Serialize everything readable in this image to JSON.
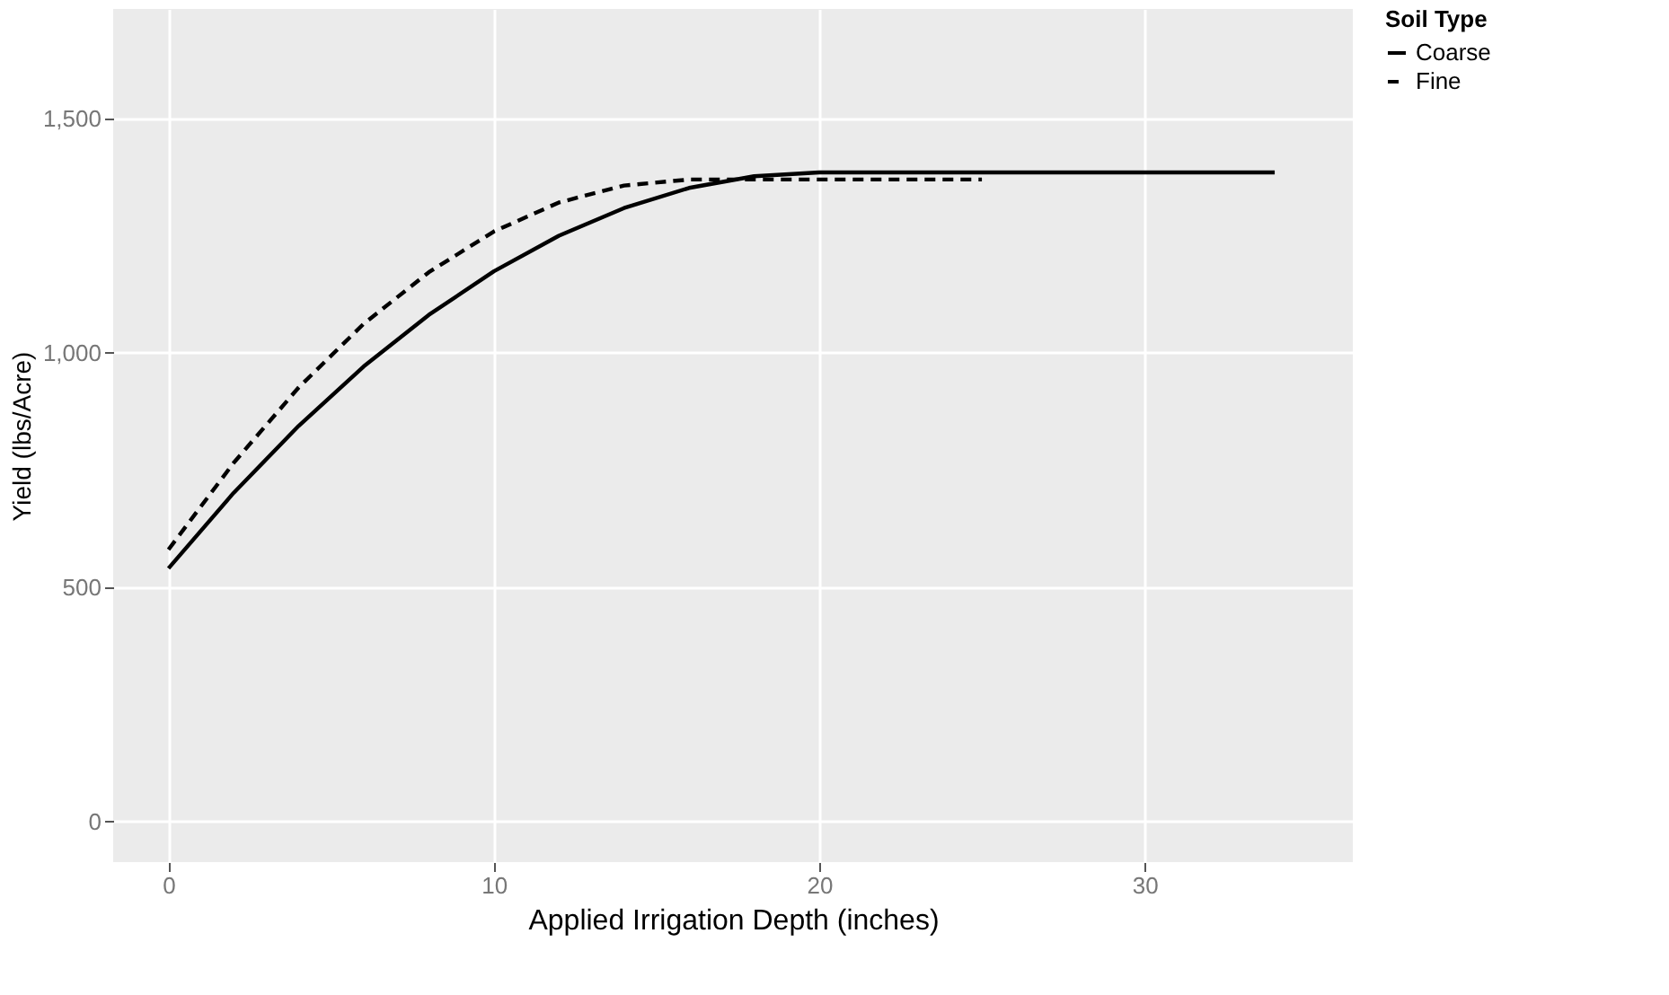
{
  "chart_data": {
    "type": "line",
    "xlabel": "Applied Irrigation Depth (inches)",
    "ylabel": "Yield (lbs/Acre)",
    "legend_title": "Soil Type",
    "legend": "right",
    "grid": true,
    "marker": "none",
    "xlim": [
      -1.7,
      36.4
    ],
    "ylim": [
      -87,
      1734
    ],
    "xticks": [
      0,
      10,
      20,
      30
    ],
    "yticks": [
      0,
      500,
      {
        "value": 1000,
        "label": "1,000"
      },
      {
        "value": 1500,
        "label": "1,500"
      }
    ],
    "series": [
      {
        "name": "Coarse",
        "color": "#000000",
        "line_style": "solid",
        "x": [
          0,
          2,
          4,
          6,
          8,
          10,
          12,
          14,
          16,
          18,
          20,
          34
        ],
        "values": [
          540,
          701,
          844,
          971,
          1081,
          1174,
          1250,
          1309,
          1352,
          1377,
          1385,
          1385
        ]
      },
      {
        "name": "Fine",
        "color": "#000000",
        "line_style": "dashed",
        "x": [
          0,
          2,
          4,
          6,
          8,
          10,
          12,
          14,
          16,
          25
        ],
        "values": [
          580,
          765,
          926,
          1062,
          1172,
          1259,
          1321,
          1357,
          1370,
          1370
        ]
      }
    ]
  }
}
